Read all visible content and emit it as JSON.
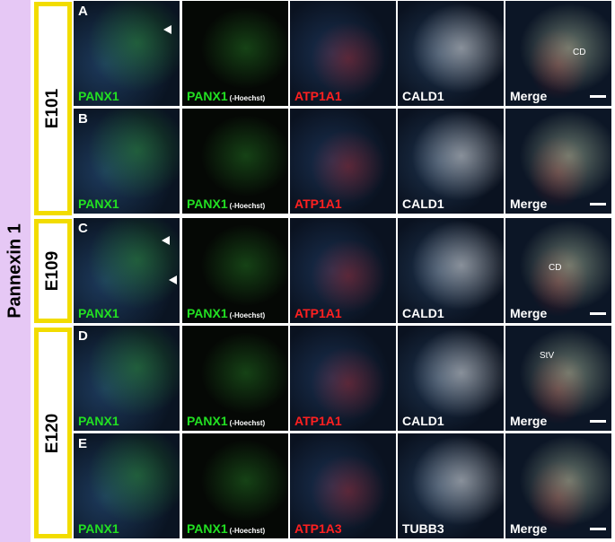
{
  "side_label": "Pannexin 1",
  "groups": [
    {
      "label": "E101"
    },
    {
      "label": "E109"
    },
    {
      "label": "E120"
    }
  ],
  "rows": [
    {
      "letter": "A",
      "panels": [
        {
          "marker": "PANX1"
        },
        {
          "marker": "PANX1",
          "note": "(-Hoechst)"
        },
        {
          "marker": "ATP1A1"
        },
        {
          "marker": "CALD1"
        },
        {
          "marker": "Merge",
          "annotation": "CD"
        }
      ]
    },
    {
      "letter": "B",
      "panels": [
        {
          "marker": "PANX1"
        },
        {
          "marker": "PANX1",
          "note": "(-Hoechst)"
        },
        {
          "marker": "ATP1A1"
        },
        {
          "marker": "CALD1"
        },
        {
          "marker": "Merge"
        }
      ]
    },
    {
      "letter": "C",
      "panels": [
        {
          "marker": "PANX1"
        },
        {
          "marker": "PANX1",
          "note": "(-Hoechst)"
        },
        {
          "marker": "ATP1A1"
        },
        {
          "marker": "CALD1"
        },
        {
          "marker": "Merge",
          "annotation": "CD"
        }
      ]
    },
    {
      "letter": "D",
      "panels": [
        {
          "marker": "PANX1"
        },
        {
          "marker": "PANX1",
          "note": "(-Hoechst)"
        },
        {
          "marker": "ATP1A1"
        },
        {
          "marker": "CALD1"
        },
        {
          "marker": "Merge",
          "annotation": "StV"
        }
      ]
    },
    {
      "letter": "E",
      "panels": [
        {
          "marker": "PANX1"
        },
        {
          "marker": "PANX1",
          "note": "(-Hoechst)"
        },
        {
          "marker": "ATP1A3"
        },
        {
          "marker": "TUBB3"
        },
        {
          "marker": "Merge"
        }
      ]
    }
  ]
}
